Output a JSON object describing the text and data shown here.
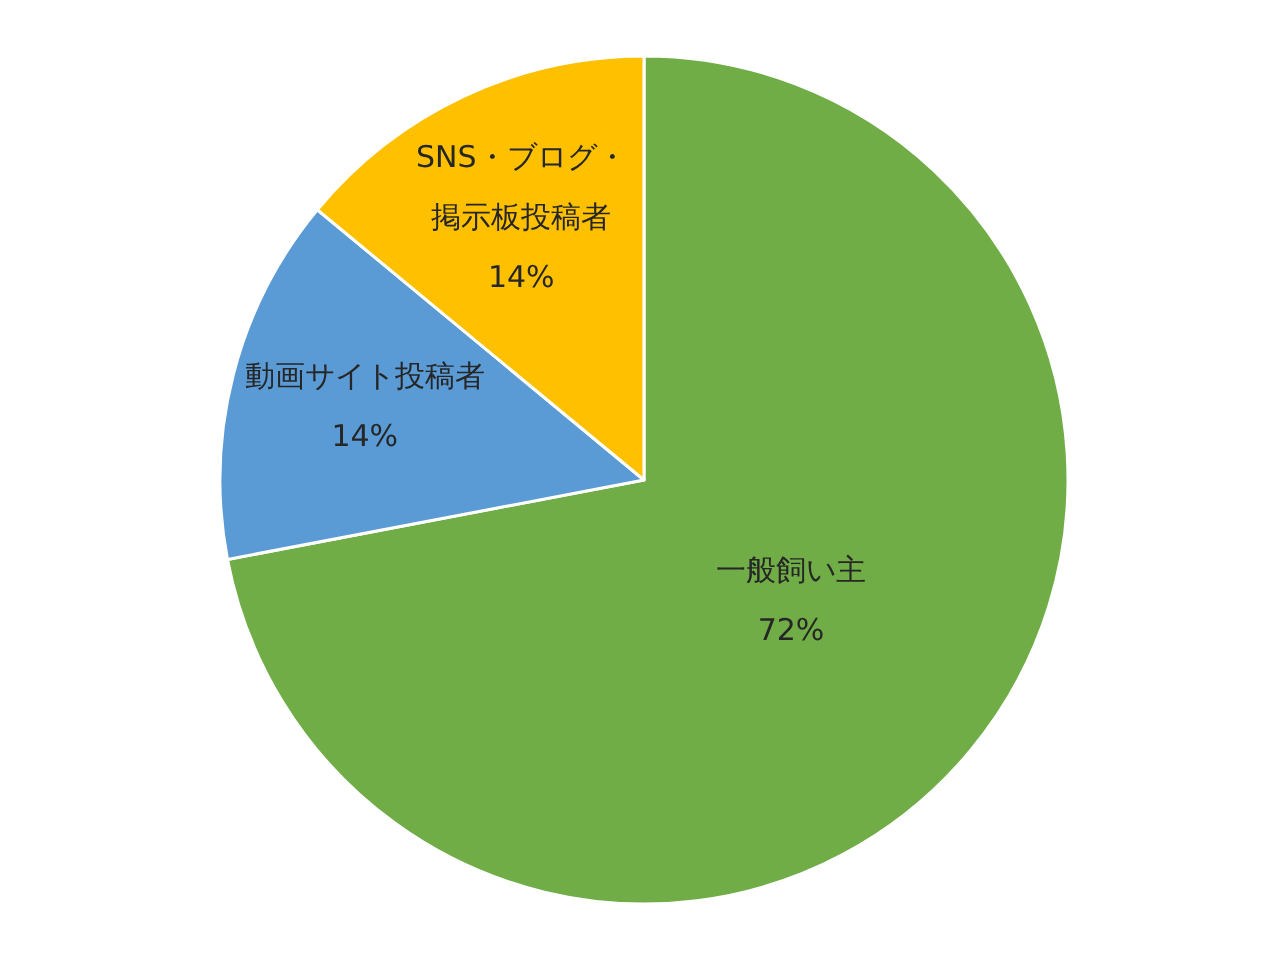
{
  "chart_data": {
    "type": "pie",
    "categories": [
      "一般飼い主",
      "動画サイト投稿者",
      "SNS・ブログ・掲示板投稿者"
    ],
    "values": [
      72,
      14,
      14
    ],
    "value_labels": [
      "72%",
      "14%",
      "14%"
    ],
    "colors": [
      "#70ad47",
      "#5b9bd5",
      "#ffc000"
    ]
  }
}
